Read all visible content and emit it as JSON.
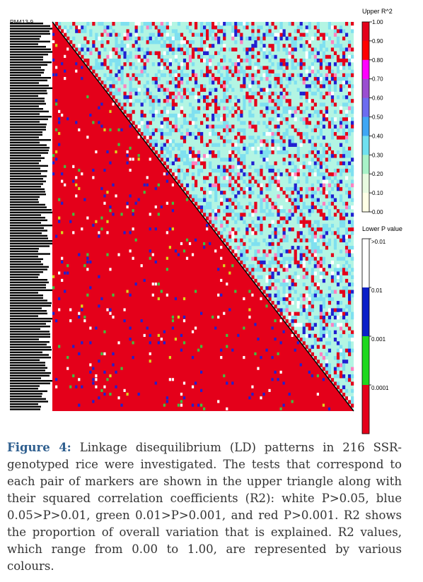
{
  "chart_data": {
    "type": "heatmap",
    "description_sample_markers": [
      "RM413-9"
    ],
    "upper_triangle": "R^2",
    "lower_triangle": "P value",
    "upper_legend": {
      "title": "Upper R^2",
      "ticks": [
        "1.00",
        "0.90",
        "0.80",
        "0.70",
        "0.60",
        "0.50",
        "0.40",
        "0.30",
        "0.20",
        "0.10",
        "0.00"
      ],
      "colors": [
        "#e4001a",
        "#ff0000",
        "#ff00ff",
        "#9a4ed1",
        "#6c6cf0",
        "#3fa7f5",
        "#6fe0f0",
        "#a8f2c8",
        "#e8fae0",
        "#ffffe6",
        "#ffffff"
      ]
    },
    "lower_legend": {
      "title": "Lower P value",
      "ticks": [
        ">0.01",
        "0.01",
        "0.001",
        "0.0001"
      ],
      "colors": [
        "#ffffff",
        "#0a1fc8",
        "#1ed81e",
        "#e4001a"
      ]
    },
    "colors": {
      "red": "#e4001a",
      "mint": "#b3f5e3",
      "cyan": "#7fe0f0",
      "blue": "#2020d0",
      "green": "#40c040",
      "white": "#ffffff"
    }
  },
  "caption": {
    "label": "Figure 4:",
    "text": " Linkage disequilibrium (LD) patterns in 216 SSR-genotyped rice were investigated. The tests that correspond to each pair of markers are shown in the upper triangle along with their squared correlation coefficients (R2): white P>0.05, blue 0.05>P>0.01, green 0.01>P>0.001, and red P>0.001. R2 shows the proportion of overall variation that is explained. R2 values, which range from 0.00 to 1.00, are represented by various colours."
  }
}
